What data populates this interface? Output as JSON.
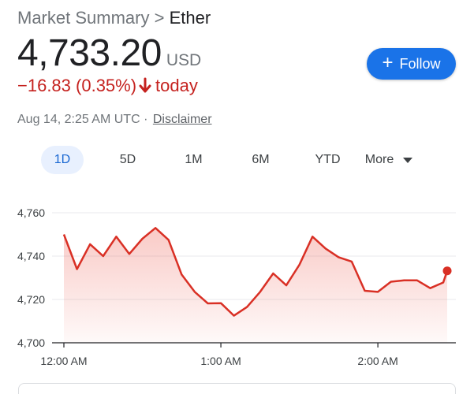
{
  "breadcrumb": {
    "parent": "Market Summary",
    "separator": " > ",
    "current": "Ether"
  },
  "quote": {
    "price": "4,733.20",
    "currency": "USD",
    "change": "−16.83 (0.35%)",
    "period": "today",
    "direction": "down",
    "color": "#c5221f"
  },
  "follow_button": {
    "label": "Follow",
    "color": "#1a73e8"
  },
  "meta": {
    "timestamp": "Aug 14, 2:25 AM UTC",
    "separator": " · ",
    "disclaimer": "Disclaimer"
  },
  "range_tabs": [
    {
      "label": "1D",
      "active": true
    },
    {
      "label": "5D",
      "active": false
    },
    {
      "label": "1M",
      "active": false
    },
    {
      "label": "6M",
      "active": false
    },
    {
      "label": "YTD",
      "active": false
    },
    {
      "label": "More",
      "active": false
    }
  ],
  "chart_data": {
    "type": "line",
    "series_color": "#d93025",
    "y_ticks": [
      "4,760",
      "4,740",
      "4,720",
      "4,700"
    ],
    "ylim": [
      4700,
      4760
    ],
    "x_ticks": [
      {
        "label": "12:00 AM",
        "minutes": 0
      },
      {
        "label": "1:00 AM",
        "minutes": 60
      },
      {
        "label": "2:00 AM",
        "minutes": 120
      }
    ],
    "xlim_minutes": [
      0,
      148
    ],
    "grid": true,
    "points": [
      [
        0,
        4750
      ],
      [
        5,
        4734
      ],
      [
        10,
        4745.5
      ],
      [
        15,
        4740
      ],
      [
        20,
        4749
      ],
      [
        25,
        4741
      ],
      [
        30,
        4748
      ],
      [
        35,
        4753
      ],
      [
        40,
        4747.5
      ],
      [
        45,
        4731.5
      ],
      [
        50,
        4723.5
      ],
      [
        55,
        4718.2
      ],
      [
        60,
        4718.3
      ],
      [
        65,
        4712.5
      ],
      [
        70,
        4716.5
      ],
      [
        75,
        4723.5
      ],
      [
        80,
        4732
      ],
      [
        85,
        4726.5
      ],
      [
        90,
        4736
      ],
      [
        95,
        4749
      ],
      [
        100,
        4743.5
      ],
      [
        105,
        4739.5
      ],
      [
        110,
        4737.5
      ],
      [
        115,
        4724
      ],
      [
        120,
        4723.5
      ],
      [
        125,
        4728.2
      ],
      [
        130,
        4728.8
      ],
      [
        135,
        4728.8
      ],
      [
        140,
        4725.2
      ],
      [
        145,
        4727.8
      ],
      [
        146.5,
        4733.2
      ]
    ]
  }
}
